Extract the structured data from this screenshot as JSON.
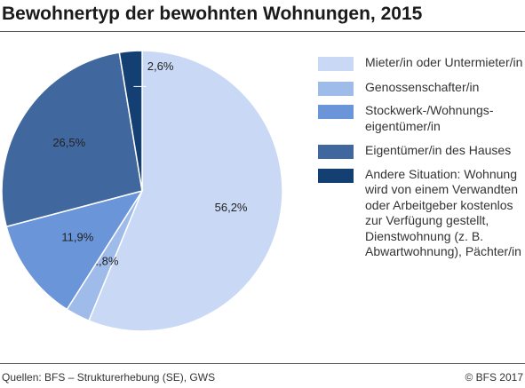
{
  "chart_data": {
    "type": "pie",
    "title": "Bewohnertyp der bewohnten Wohnungen, 2015",
    "series": [
      {
        "name": "Mieter/in oder Untermieter/in",
        "value": 56.2,
        "label": "56,2%",
        "color": "#c9d9f5"
      },
      {
        "name": "Genossenschafter/in",
        "value": 2.8,
        "label": "2,8%",
        "color": "#9ebbea"
      },
      {
        "name": "Stockwerk-/Wohnungs­eigentümer/in",
        "value": 11.9,
        "label": "11,9%",
        "color": "#6a95d8"
      },
      {
        "name": "Eigentümer/in des Hauses",
        "value": 26.5,
        "label": "26,5%",
        "color": "#40689f"
      },
      {
        "name": "Andere Situation: Wohnung wird von einem Verwandten oder Arbeit­geber kostenlos zur Ver­fügung gestellt, Dienst­wohnung (z. B. Abwart­wohnung), Pächter/in",
        "value": 2.6,
        "label": "2,6%",
        "color": "#143f72"
      }
    ],
    "legend_position": "right"
  },
  "footer": {
    "source": "Quellen: BFS – Strukturerhebung (SE), GWS",
    "copyright": "© BFS 2017"
  }
}
